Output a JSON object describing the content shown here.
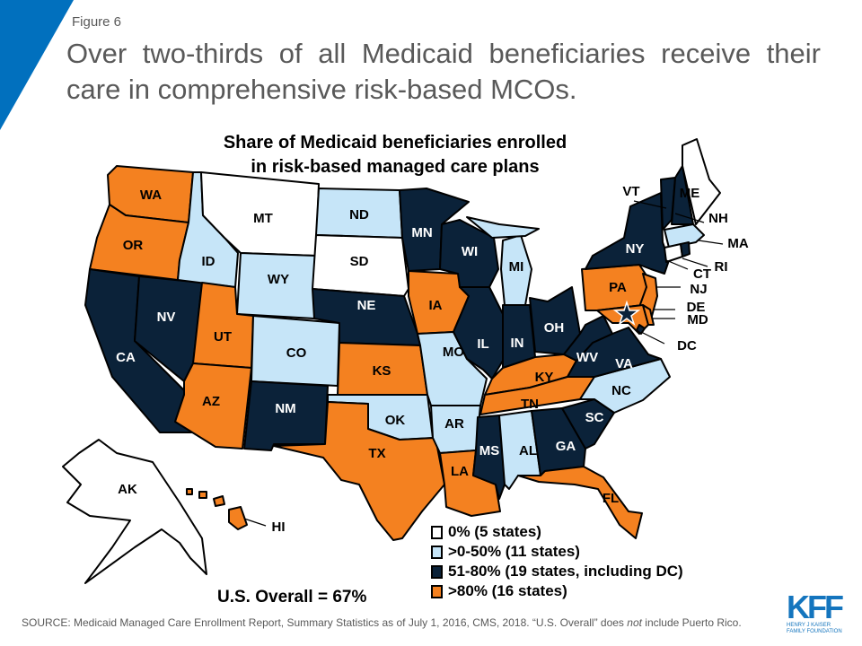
{
  "slide": {
    "figure_label": "Figure 6",
    "headline": "Over two-thirds of all Medicaid beneficiaries receive their care in comprehensive risk-based MCOs.",
    "map_title_line1": "Share of Medicaid beneficiaries enrolled",
    "map_title_line2": "in risk-based managed care plans",
    "overall": "U.S. Overall = 67%",
    "source": "SOURCE: Medicaid Managed Care Enrollment Report, Summary Statistics as of July 1, 2016, CMS, 2018. “U.S. Overall”  does ",
    "source_italic": "not",
    "source_end": " include Puerto Rico.",
    "logo": {
      "mark": "KFF",
      "line1": "HENRY J KAISER",
      "line2": "FAMILY FOUNDATION"
    }
  },
  "colors": {
    "none": "#FFFFFF",
    "low": "#C6E5F8",
    "mid": "#0B2239",
    "high": "#F48120",
    "accent": "#0170BE"
  },
  "legend": [
    {
      "key": "none",
      "label": "0% (5 states)"
    },
    {
      "key": "low",
      "label": ">0-50% (11 states)"
    },
    {
      "key": "mid",
      "label": "51-80% (19 states, including DC)"
    },
    {
      "key": "high",
      "label": ">80% (16 states)"
    }
  ],
  "states": {
    "AK": "none",
    "CT": "none",
    "ME": "none",
    "MT": "none",
    "SD": "none",
    "ND": "low",
    "ID": "low",
    "WY": "low",
    "CO": "low",
    "OK": "low",
    "MO": "low",
    "AR": "low",
    "MI": "low",
    "AL": "low",
    "NC": "low",
    "MA": "low",
    "CA": "mid",
    "NV": "mid",
    "NM": "mid",
    "NE": "mid",
    "MN": "mid",
    "WI": "mid",
    "IL": "mid",
    "IN": "mid",
    "OH": "mid",
    "NY": "mid",
    "VT": "mid",
    "NH": "mid",
    "WV": "mid",
    "VA": "mid",
    "MS": "mid",
    "GA": "mid",
    "SC": "mid",
    "DC": "mid",
    "RI": "mid",
    "WA": "high",
    "OR": "high",
    "UT": "high",
    "AZ": "high",
    "KS": "high",
    "IA": "high",
    "TX": "high",
    "LA": "high",
    "KY": "high",
    "TN": "high",
    "FL": "high",
    "PA": "high",
    "NJ": "high",
    "DE": "high",
    "MD": "high",
    "HI": "high"
  },
  "labels": {
    "WA": "WA",
    "OR": "OR",
    "CA": "CA",
    "NV": "NV",
    "ID": "ID",
    "MT": "MT",
    "WY": "WY",
    "UT": "UT",
    "AZ": "AZ",
    "CO": "CO",
    "NM": "NM",
    "ND": "ND",
    "SD": "SD",
    "NE": "NE",
    "KS": "KS",
    "OK": "OK",
    "TX": "TX",
    "MN": "MN",
    "IA": "IA",
    "MO": "MO",
    "AR": "AR",
    "LA": "LA",
    "WI": "WI",
    "IL": "IL",
    "MI": "MI",
    "IN": "IN",
    "OH": "OH",
    "KY": "KY",
    "TN": "TN",
    "MS": "MS",
    "AL": "AL",
    "GA": "GA",
    "FL": "FL",
    "SC": "SC",
    "NC": "NC",
    "VA": "VA",
    "WV": "WV",
    "PA": "PA",
    "NY": "NY",
    "NJ": "NJ",
    "DE": "DE",
    "MD": "MD",
    "DC": "DC",
    "VT": "VT",
    "NH": "NH",
    "ME": "ME",
    "MA": "MA",
    "CT": "CT",
    "RI": "RI",
    "AK": "AK",
    "HI": "HI"
  }
}
